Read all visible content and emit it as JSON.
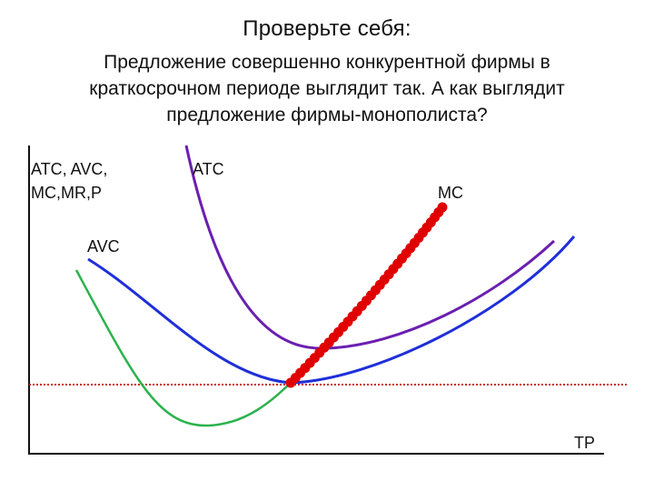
{
  "title": "Проверьте себя:",
  "subtitle": [
    "Предложение совершенно конкурентной фирмы в",
    "краткосрочном периоде выглядит так. А как выглядит",
    "предложение фирмы-монополиста?"
  ],
  "y_axis_label": [
    "ATC, AVC,",
    "MC,MR,P"
  ],
  "x_axis_label": "TP",
  "curve_labels": {
    "atc": "ATC",
    "mc": "MC",
    "avc": "AVC"
  },
  "colors": {
    "atc": "#6a1fb0",
    "avc": "#1f2fd8",
    "mc": "#2bb24c",
    "supply": "#e00000",
    "price_line": "#cc2222",
    "axis": "#111111"
  }
}
